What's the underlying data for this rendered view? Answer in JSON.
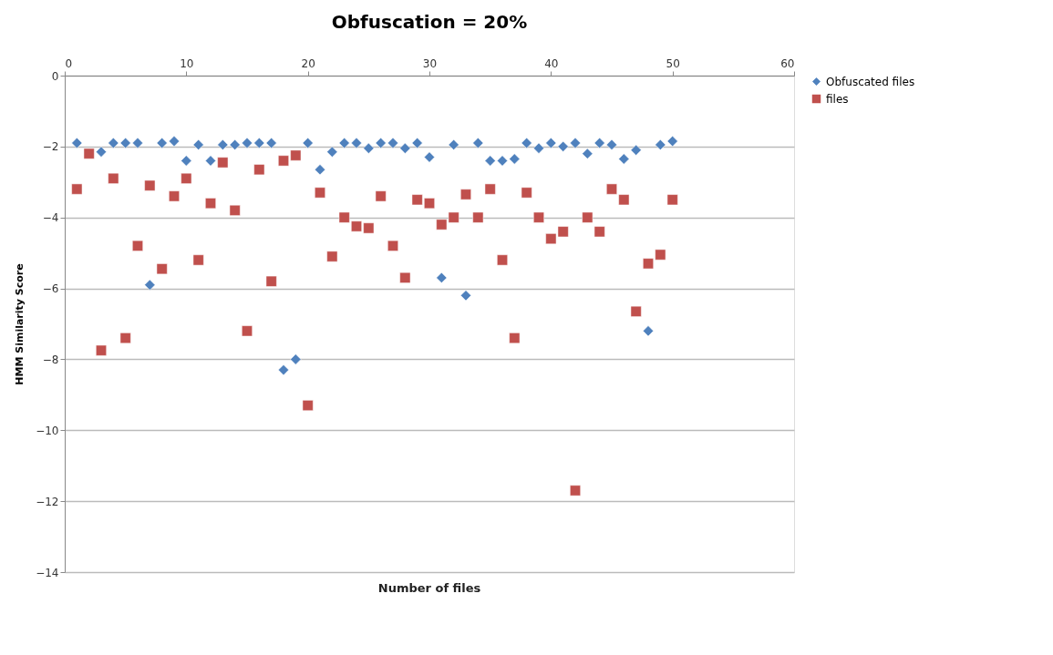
{
  "chart_data": {
    "type": "scatter",
    "title": "Obfuscation = 20%",
    "xlabel": "Number of files",
    "ylabel": "HMM Similarity Score",
    "x": [
      1,
      2,
      3,
      4,
      5,
      6,
      7,
      8,
      9,
      10,
      11,
      12,
      13,
      14,
      15,
      16,
      17,
      18,
      19,
      20,
      21,
      22,
      23,
      24,
      25,
      26,
      27,
      28,
      29,
      30,
      31,
      32,
      33,
      34,
      35,
      36,
      37,
      38,
      39,
      40,
      41,
      42,
      43,
      44,
      45,
      46,
      47,
      48,
      49,
      50
    ],
    "series": [
      {
        "name": "Obfuscated files",
        "color": "#4f81bd",
        "marker": "diamond",
        "values": [
          -1.9,
          null,
          -2.15,
          -1.9,
          -1.9,
          -1.9,
          -5.9,
          -1.9,
          -1.85,
          -2.4,
          -1.95,
          -2.4,
          -1.95,
          -1.95,
          -1.9,
          -1.9,
          -1.9,
          -8.3,
          -8.0,
          -1.9,
          -2.65,
          -2.15,
          -1.9,
          -1.9,
          -2.05,
          -1.9,
          -1.9,
          -2.05,
          -1.9,
          -2.3,
          -5.7,
          -1.95,
          -6.2,
          -1.9,
          -2.4,
          -2.4,
          -2.35,
          -1.9,
          -2.05,
          -1.9,
          -2.0,
          -1.9,
          -2.2,
          -1.9,
          -1.95,
          -2.35,
          -2.1,
          -7.2,
          -1.95,
          -1.85
        ]
      },
      {
        "name": "files",
        "color": "#c0504d",
        "marker": "square",
        "values": [
          -3.2,
          -2.2,
          -7.75,
          -2.9,
          -7.4,
          -4.8,
          -3.1,
          -5.45,
          -3.4,
          -2.9,
          -5.2,
          -3.6,
          -2.45,
          -3.8,
          -7.2,
          -2.65,
          -5.8,
          -2.4,
          -2.25,
          -9.3,
          -3.3,
          -5.1,
          -4.0,
          -4.25,
          -4.3,
          -3.4,
          -4.8,
          -5.7,
          -3.5,
          -3.6,
          -4.2,
          -4.0,
          -3.35,
          -4.0,
          -3.2,
          -5.2,
          -7.4,
          -3.3,
          -4.0,
          -4.6,
          -4.4,
          -11.7,
          -4.0,
          -4.4,
          -3.2,
          -3.5,
          -6.65,
          -5.3,
          -5.05,
          -3.5
        ]
      }
    ],
    "xlim": [
      0,
      60
    ],
    "xticks": [
      0,
      10,
      20,
      30,
      40,
      50,
      60
    ],
    "ylim": [
      -14,
      0
    ],
    "yticks": [
      0,
      -2,
      -4,
      -6,
      -8,
      -10,
      -12,
      -14
    ],
    "grid": "y",
    "legend": "right"
  }
}
